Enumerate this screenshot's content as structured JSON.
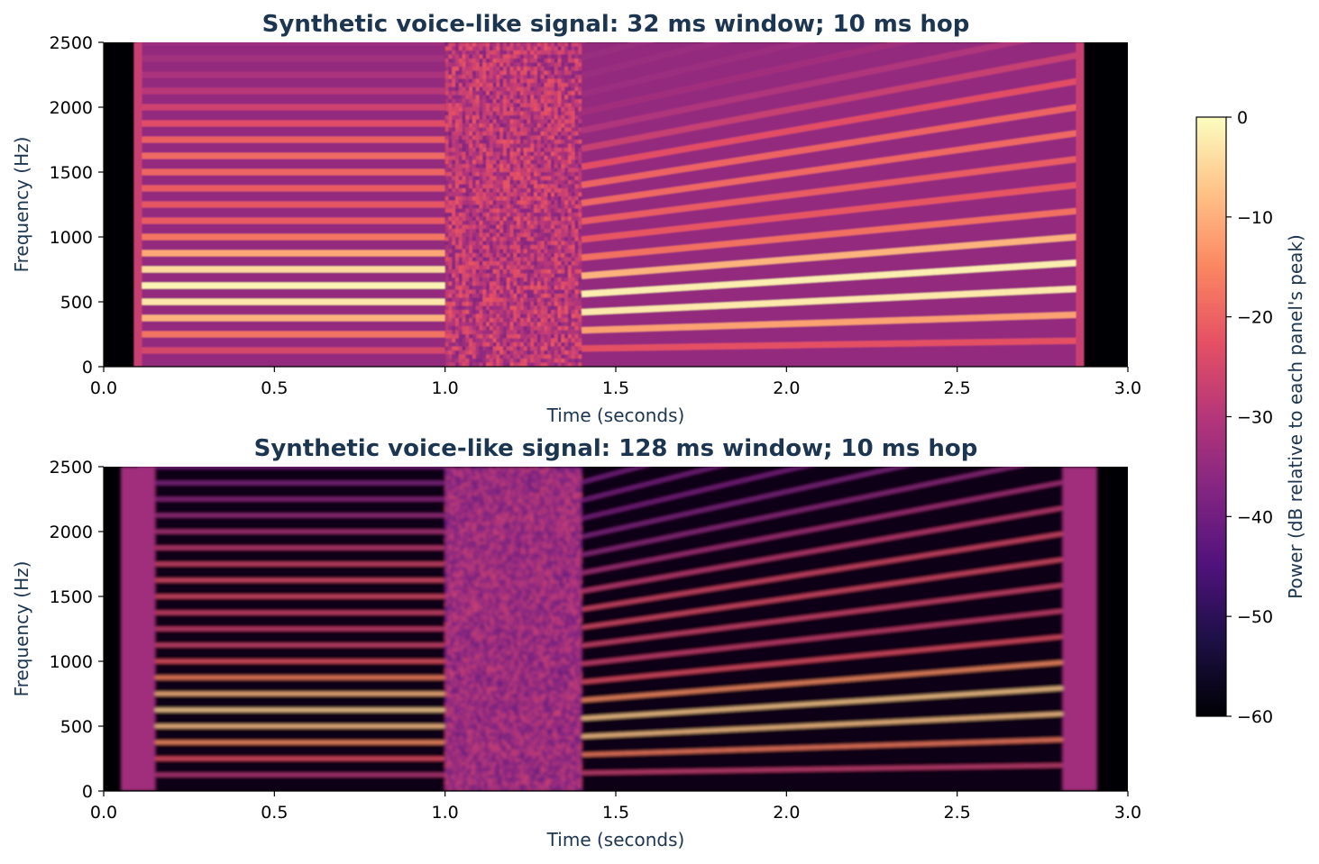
{
  "chart_data": [
    {
      "type": "heatmap",
      "title": "Synthetic voice-like signal: 32 ms window; 10 ms hop",
      "xlabel": "Time (seconds)",
      "ylabel": "Frequency (Hz)",
      "xlim": [
        0,
        3.0
      ],
      "ylim": [
        0,
        2500
      ],
      "xticks": [
        "0.0",
        "0.5",
        "1.0",
        "1.5",
        "2.0",
        "2.5",
        "3.0"
      ],
      "yticks": [
        "0",
        "500",
        "1000",
        "1500",
        "2000",
        "2500"
      ],
      "window_ms": 32,
      "hop_ms": 10,
      "segments": [
        {
          "kind": "silence",
          "t": [
            0.0,
            0.1
          ]
        },
        {
          "kind": "harmonic",
          "t": [
            0.1,
            1.0
          ],
          "f0_start": 125,
          "f0_end": 125
        },
        {
          "kind": "noise",
          "t": [
            1.0,
            1.4
          ]
        },
        {
          "kind": "harmonic",
          "t": [
            1.4,
            2.85
          ],
          "f0_start": 140,
          "f0_end": 200
        },
        {
          "kind": "silence",
          "t": [
            2.85,
            3.0
          ]
        }
      ]
    },
    {
      "type": "heatmap",
      "title": "Synthetic voice-like signal: 128 ms window; 10 ms hop",
      "xlabel": "Time (seconds)",
      "ylabel": "Frequency (Hz)",
      "xlim": [
        0,
        3.0
      ],
      "ylim": [
        0,
        2500
      ],
      "xticks": [
        "0.0",
        "0.5",
        "1.0",
        "1.5",
        "2.0",
        "2.5",
        "3.0"
      ],
      "yticks": [
        "0",
        "500",
        "1000",
        "1500",
        "2000",
        "2500"
      ],
      "window_ms": 128,
      "hop_ms": 10,
      "segments": [
        {
          "kind": "silence",
          "t": [
            0.0,
            0.1
          ]
        },
        {
          "kind": "harmonic",
          "t": [
            0.1,
            1.0
          ],
          "f0_start": 125,
          "f0_end": 125
        },
        {
          "kind": "noise",
          "t": [
            1.0,
            1.4
          ]
        },
        {
          "kind": "harmonic",
          "t": [
            1.4,
            2.85
          ],
          "f0_start": 140,
          "f0_end": 200
        },
        {
          "kind": "silence",
          "t": [
            2.85,
            3.0
          ]
        }
      ]
    }
  ],
  "colorbar": {
    "label": "Power (dB relative to each panel's peak)",
    "range": [
      -60,
      0
    ],
    "ticks": [
      "0",
      "−10",
      "−20",
      "−30",
      "−40",
      "−50",
      "−60"
    ],
    "colormap": "magma",
    "colors": [
      "#000004",
      "#1c1044",
      "#4f127b",
      "#812581",
      "#b5367a",
      "#e55064",
      "#fb8761",
      "#fec287",
      "#fcfdbf"
    ]
  }
}
